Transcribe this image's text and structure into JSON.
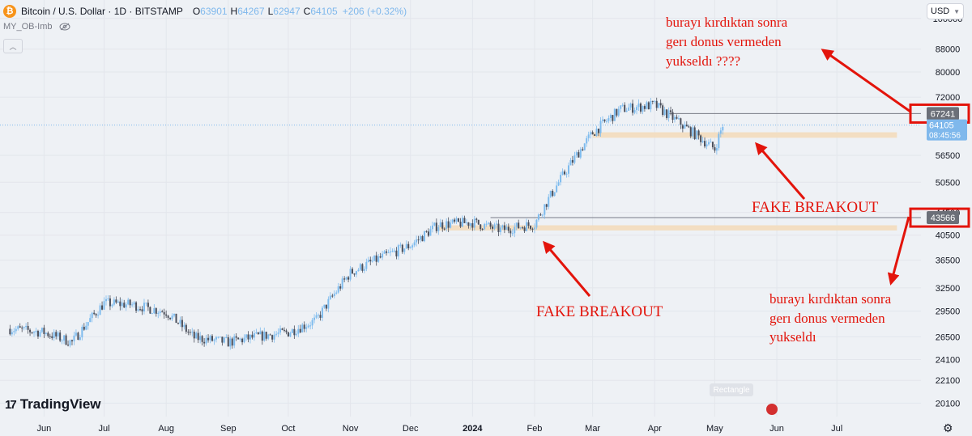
{
  "header": {
    "symbol": "Bitcoin / U.S. Dollar · 1D · BITSTAMP",
    "open_label": "O",
    "open_value": "63901",
    "high_label": "H",
    "high_value": "64267",
    "low_label": "L",
    "low_value": "62947",
    "close_label": "C",
    "close_value": "64105",
    "change": "+206 (+0.32%)",
    "coin_glyph": "₿"
  },
  "indicator": {
    "name": "MY_OB-Imb",
    "visibility_icon": "eye-off-icon"
  },
  "currency": {
    "label": "USD",
    "icon": "chevron-down-icon"
  },
  "collapse_icon": "chevron-up-icon",
  "price_axis": {
    "ticks": [
      "100000",
      "88000",
      "80000",
      "72000",
      "64105",
      "56500",
      "50500",
      "44500",
      "40500",
      "36500",
      "32500",
      "29500",
      "26500",
      "24100",
      "22100",
      "20100"
    ],
    "tick_values": [
      100000,
      88000,
      80000,
      72000,
      64105,
      56500,
      50500,
      44500,
      40500,
      36500,
      32500,
      29500,
      26500,
      24100,
      22100,
      20100
    ],
    "last_price_label": "64105",
    "countdown": "08:45:56",
    "marker_upper": "67241",
    "marker_lower": "43566"
  },
  "time_axis": {
    "labels": [
      "Jun",
      "Jul",
      "Aug",
      "Sep",
      "Oct",
      "Nov",
      "Dec",
      "2024",
      "Feb",
      "Mar",
      "Apr",
      "May",
      "Jun",
      "Jul"
    ]
  },
  "annotations": {
    "top_lines": [
      "burayı kırdıktan sonra",
      "gerı donus vermeden",
      "yukseldı ????"
    ],
    "bottom_lines": [
      "burayı kırdıktan sonra",
      "gerı donus vermeden",
      "yukseldı"
    ],
    "fake_breakout_upper": "FAKE BREAKOUT",
    "fake_breakout_lower": "FAKE BREAKOUT"
  },
  "watermark": {
    "text": "TradingView",
    "mark": "17"
  },
  "rectangle_tooltip": "Rectangle",
  "settings_icon": "gear-icon",
  "colors": {
    "bull_candle": "#7dbbee",
    "bear_candle": "#4a4e5a",
    "zone": "#f3dbbd",
    "annotation_red": "#e3140b",
    "last_price_bg": "#7fb8ec",
    "marker_bg": "#6b6f78"
  },
  "chart_data": {
    "type": "candlestick",
    "series_name": "BTCUSD",
    "x": [
      "2023-05-15",
      "2023-06-01",
      "2023-06-15",
      "2023-07-01",
      "2023-07-15",
      "2023-08-01",
      "2023-08-15",
      "2023-09-01",
      "2023-09-15",
      "2023-10-01",
      "2023-10-15",
      "2023-11-01",
      "2023-11-15",
      "2023-12-01",
      "2023-12-15",
      "2024-01-01",
      "2024-01-15",
      "2024-02-01",
      "2024-02-15",
      "2024-03-01",
      "2024-03-15",
      "2024-04-01",
      "2024-04-15",
      "2024-05-01",
      "2024-05-05"
    ],
    "close": [
      27400,
      27000,
      25900,
      30500,
      30300,
      29400,
      26400,
      25900,
      26500,
      27000,
      28400,
      34600,
      36700,
      38800,
      42300,
      42700,
      41400,
      42400,
      51800,
      62000,
      68500,
      69700,
      64000,
      58000,
      64105
    ],
    "zones": [
      {
        "from": "2024-03-01",
        "to": "2024-07-31",
        "low": 60800,
        "high": 62200
      },
      {
        "from": "2023-12-15",
        "to": "2024-07-31",
        "low": 41300,
        "high": 42200
      }
    ],
    "levels": [
      67241,
      43566
    ],
    "ylim": [
      19000,
      108000
    ],
    "scale": "log"
  }
}
